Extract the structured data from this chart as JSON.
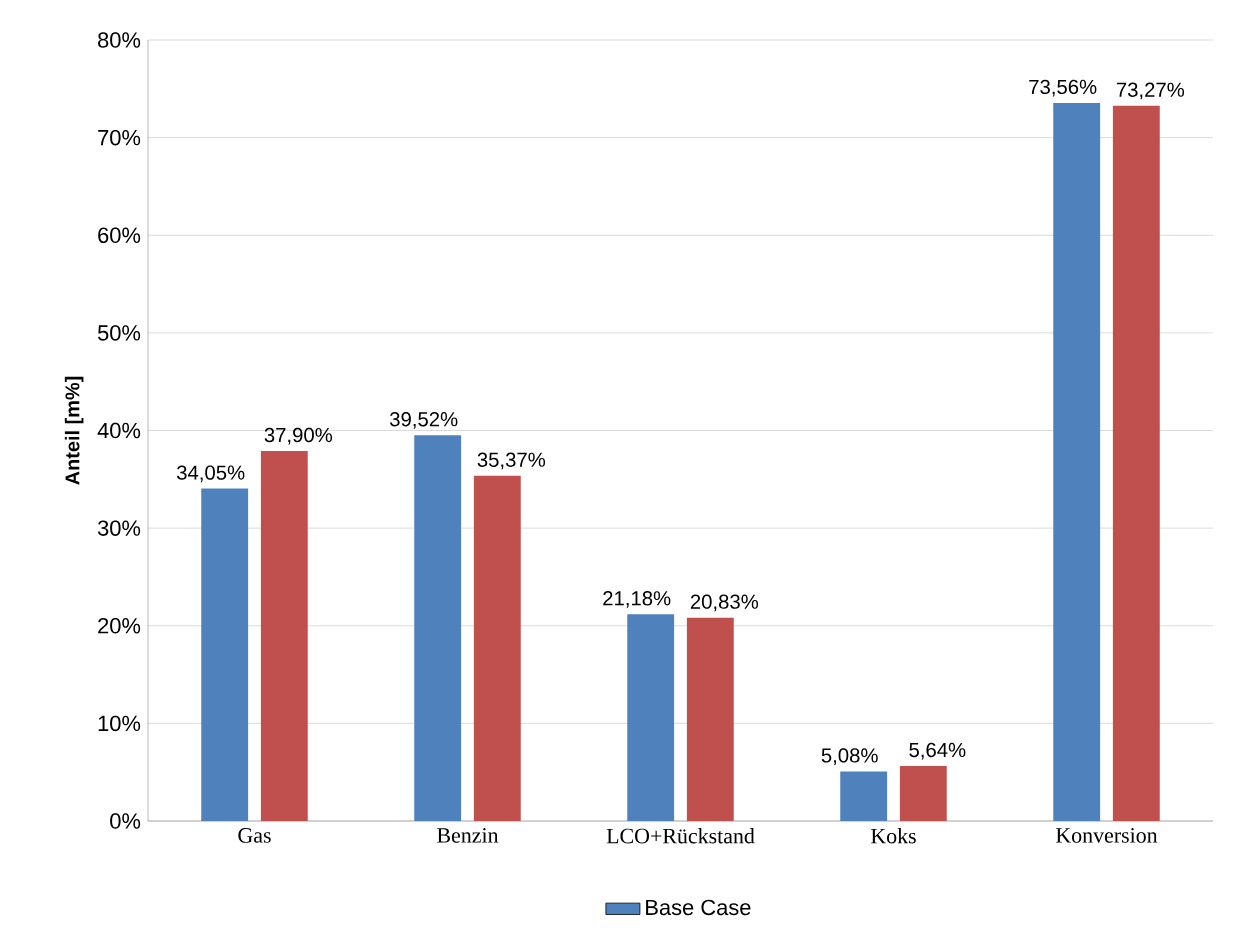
{
  "chart_data": {
    "type": "bar",
    "ylabel": "Anteil [m%]",
    "categories": [
      "Gas",
      "Benzin",
      "LCO+Rückstand",
      "Koks",
      "Konversion"
    ],
    "series": [
      {
        "name": "Base Case",
        "color": "#4f81bd",
        "values": [
          34.05,
          39.52,
          21.18,
          5.08,
          73.56
        ],
        "value_labels": [
          "34,05%",
          "39,52%",
          "21,18%",
          "5,08%",
          "73,56%"
        ]
      },
      {
        "color": "#c0504d",
        "values": [
          37.9,
          35.37,
          20.83,
          5.64,
          73.27
        ],
        "value_labels": [
          "37,90%",
          "35,37%",
          "20,83%",
          "5,64%",
          "73,27%"
        ]
      }
    ],
    "ylim": [
      0,
      80
    ],
    "yticks": [
      {
        "value": 0,
        "label": "0%"
      },
      {
        "value": 10,
        "label": "10%"
      },
      {
        "value": 20,
        "label": "20%"
      },
      {
        "value": 30,
        "label": "30%"
      },
      {
        "value": 40,
        "label": "40%"
      },
      {
        "value": 50,
        "label": "50%"
      },
      {
        "value": 60,
        "label": "60%"
      },
      {
        "value": 70,
        "label": "70%"
      },
      {
        "value": 80,
        "label": "80%"
      }
    ],
    "grid": "y",
    "legend": "bottom"
  }
}
